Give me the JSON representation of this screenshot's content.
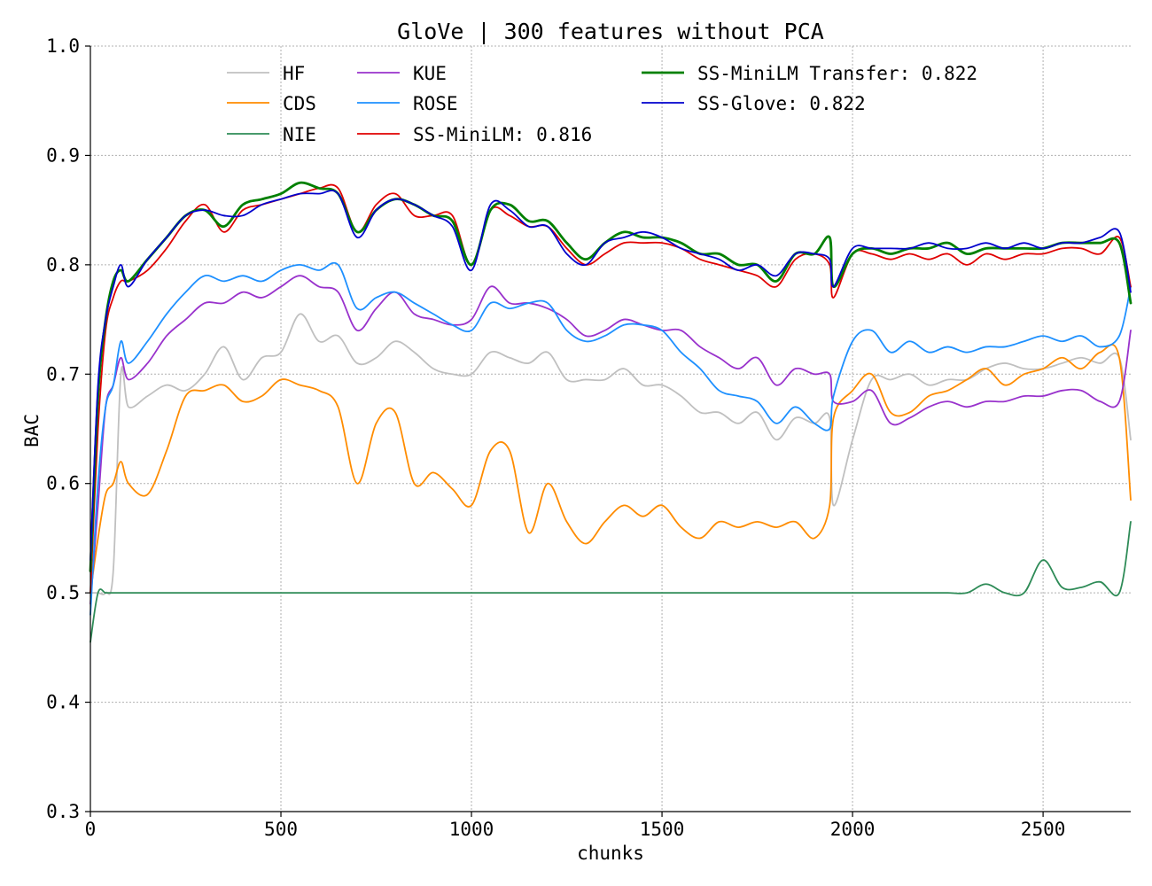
{
  "chart_data": {
    "type": "line",
    "title": "GloVe | 300 features without PCA",
    "xlabel": "chunks",
    "ylabel": "BAC",
    "xlim": [
      0,
      2730
    ],
    "ylim": [
      0.3,
      1.0
    ],
    "xticks": [
      0,
      500,
      1000,
      1500,
      2000,
      2500
    ],
    "yticks": [
      0.3,
      0.4,
      0.5,
      0.6,
      0.7,
      0.8,
      0.9,
      1.0
    ],
    "xtick_labels": [
      "0",
      "500",
      "1000",
      "1500",
      "2000",
      "2500"
    ],
    "ytick_labels": [
      "0.3",
      "0.4",
      "0.5",
      "0.6",
      "0.7",
      "0.8",
      "0.9",
      "1.0"
    ],
    "grid": true,
    "legend_position": "top",
    "legend_columns": [
      [
        "HF",
        "CDS",
        "NIE"
      ],
      [
        "KUE",
        "ROSE",
        "SS-MiniLM: 0.816"
      ],
      [
        "SS-MiniLM Transfer: 0.822",
        "SS-Glove: 0.822"
      ]
    ],
    "x": [
      0,
      20,
      40,
      60,
      80,
      100,
      150,
      200,
      250,
      300,
      350,
      400,
      450,
      500,
      550,
      600,
      650,
      700,
      750,
      800,
      850,
      900,
      950,
      1000,
      1050,
      1100,
      1150,
      1200,
      1250,
      1300,
      1350,
      1400,
      1450,
      1500,
      1550,
      1600,
      1650,
      1700,
      1750,
      1800,
      1850,
      1900,
      1940,
      1950,
      2000,
      2050,
      2100,
      2150,
      2200,
      2250,
      2300,
      2350,
      2400,
      2450,
      2500,
      2550,
      2600,
      2650,
      2700,
      2730
    ],
    "series": [
      {
        "name": "HF",
        "color": "#c0c0c0",
        "width": 1.8,
        "values": [
          0.5,
          0.5,
          0.5,
          0.52,
          0.7,
          0.67,
          0.68,
          0.69,
          0.685,
          0.7,
          0.725,
          0.695,
          0.715,
          0.72,
          0.755,
          0.73,
          0.735,
          0.71,
          0.715,
          0.73,
          0.72,
          0.705,
          0.7,
          0.7,
          0.72,
          0.715,
          0.71,
          0.72,
          0.695,
          0.695,
          0.695,
          0.705,
          0.69,
          0.69,
          0.68,
          0.665,
          0.665,
          0.655,
          0.665,
          0.64,
          0.66,
          0.655,
          0.66,
          0.58,
          0.64,
          0.695,
          0.695,
          0.7,
          0.69,
          0.695,
          0.695,
          0.705,
          0.71,
          0.705,
          0.705,
          0.71,
          0.715,
          0.71,
          0.715,
          0.64
        ]
      },
      {
        "name": "CDS",
        "color": "#ff8c00",
        "width": 1.8,
        "values": [
          0.5,
          0.55,
          0.59,
          0.6,
          0.62,
          0.6,
          0.59,
          0.63,
          0.68,
          0.685,
          0.69,
          0.675,
          0.68,
          0.695,
          0.69,
          0.685,
          0.67,
          0.6,
          0.655,
          0.665,
          0.6,
          0.61,
          0.595,
          0.58,
          0.63,
          0.63,
          0.555,
          0.6,
          0.565,
          0.545,
          0.565,
          0.58,
          0.57,
          0.58,
          0.56,
          0.55,
          0.565,
          0.56,
          0.565,
          0.56,
          0.565,
          0.55,
          0.58,
          0.66,
          0.685,
          0.7,
          0.665,
          0.665,
          0.68,
          0.685,
          0.695,
          0.705,
          0.69,
          0.7,
          0.705,
          0.715,
          0.705,
          0.72,
          0.715,
          0.585
        ]
      },
      {
        "name": "NIE",
        "color": "#2e8b57",
        "width": 1.8,
        "values": [
          0.455,
          0.5,
          0.5,
          0.5,
          0.5,
          0.5,
          0.5,
          0.5,
          0.5,
          0.5,
          0.5,
          0.5,
          0.5,
          0.5,
          0.5,
          0.5,
          0.5,
          0.5,
          0.5,
          0.5,
          0.5,
          0.5,
          0.5,
          0.5,
          0.5,
          0.5,
          0.5,
          0.5,
          0.5,
          0.5,
          0.5,
          0.5,
          0.5,
          0.5,
          0.5,
          0.5,
          0.5,
          0.5,
          0.5,
          0.5,
          0.5,
          0.5,
          0.5,
          0.5,
          0.5,
          0.5,
          0.5,
          0.5,
          0.5,
          0.5,
          0.5,
          0.508,
          0.5,
          0.5,
          0.53,
          0.505,
          0.505,
          0.51,
          0.5,
          0.565
        ]
      },
      {
        "name": "KUE",
        "color": "#9932cc",
        "width": 1.8,
        "values": [
          0.49,
          0.58,
          0.67,
          0.69,
          0.715,
          0.695,
          0.71,
          0.735,
          0.75,
          0.765,
          0.765,
          0.775,
          0.77,
          0.78,
          0.79,
          0.78,
          0.775,
          0.74,
          0.76,
          0.775,
          0.755,
          0.75,
          0.745,
          0.75,
          0.78,
          0.765,
          0.765,
          0.76,
          0.75,
          0.735,
          0.74,
          0.75,
          0.745,
          0.74,
          0.74,
          0.725,
          0.715,
          0.705,
          0.715,
          0.69,
          0.705,
          0.7,
          0.7,
          0.675,
          0.675,
          0.685,
          0.655,
          0.66,
          0.67,
          0.675,
          0.67,
          0.675,
          0.675,
          0.68,
          0.68,
          0.685,
          0.685,
          0.675,
          0.675,
          0.74
        ]
      },
      {
        "name": "ROSE",
        "color": "#1e90ff",
        "width": 1.8,
        "values": [
          0.48,
          0.6,
          0.67,
          0.69,
          0.73,
          0.71,
          0.73,
          0.755,
          0.775,
          0.79,
          0.785,
          0.79,
          0.785,
          0.795,
          0.8,
          0.795,
          0.8,
          0.76,
          0.77,
          0.775,
          0.765,
          0.755,
          0.745,
          0.74,
          0.765,
          0.76,
          0.765,
          0.765,
          0.74,
          0.73,
          0.735,
          0.745,
          0.745,
          0.74,
          0.72,
          0.705,
          0.685,
          0.68,
          0.675,
          0.655,
          0.67,
          0.655,
          0.65,
          0.68,
          0.73,
          0.74,
          0.72,
          0.73,
          0.72,
          0.725,
          0.72,
          0.725,
          0.725,
          0.73,
          0.735,
          0.73,
          0.735,
          0.725,
          0.735,
          0.78
        ]
      },
      {
        "name": "SS-MiniLM: 0.816",
        "color": "#e00000",
        "width": 1.8,
        "values": [
          0.5,
          0.65,
          0.74,
          0.77,
          0.785,
          0.785,
          0.795,
          0.815,
          0.84,
          0.855,
          0.83,
          0.85,
          0.855,
          0.86,
          0.865,
          0.87,
          0.87,
          0.83,
          0.855,
          0.865,
          0.845,
          0.845,
          0.845,
          0.8,
          0.85,
          0.845,
          0.835,
          0.835,
          0.815,
          0.8,
          0.81,
          0.82,
          0.82,
          0.82,
          0.815,
          0.805,
          0.8,
          0.795,
          0.79,
          0.78,
          0.805,
          0.81,
          0.8,
          0.77,
          0.81,
          0.81,
          0.805,
          0.81,
          0.805,
          0.81,
          0.8,
          0.81,
          0.805,
          0.81,
          0.81,
          0.815,
          0.815,
          0.81,
          0.825,
          0.78
        ]
      },
      {
        "name": "SS-MiniLM Transfer: 0.822",
        "color": "#008000",
        "width": 2.8,
        "values": [
          0.52,
          0.68,
          0.75,
          0.785,
          0.795,
          0.785,
          0.805,
          0.825,
          0.845,
          0.85,
          0.835,
          0.855,
          0.86,
          0.865,
          0.875,
          0.87,
          0.865,
          0.83,
          0.85,
          0.86,
          0.855,
          0.845,
          0.84,
          0.8,
          0.85,
          0.855,
          0.84,
          0.84,
          0.82,
          0.805,
          0.82,
          0.83,
          0.825,
          0.825,
          0.82,
          0.81,
          0.81,
          0.8,
          0.8,
          0.785,
          0.81,
          0.81,
          0.825,
          0.78,
          0.81,
          0.815,
          0.81,
          0.815,
          0.815,
          0.82,
          0.81,
          0.815,
          0.815,
          0.815,
          0.815,
          0.82,
          0.82,
          0.82,
          0.82,
          0.765
        ]
      },
      {
        "name": "SS-Glove: 0.822",
        "color": "#0000cd",
        "width": 1.8,
        "values": [
          0.53,
          0.69,
          0.75,
          0.78,
          0.8,
          0.78,
          0.805,
          0.825,
          0.845,
          0.85,
          0.845,
          0.845,
          0.855,
          0.86,
          0.865,
          0.865,
          0.865,
          0.825,
          0.85,
          0.86,
          0.855,
          0.845,
          0.835,
          0.795,
          0.855,
          0.85,
          0.835,
          0.835,
          0.81,
          0.8,
          0.82,
          0.825,
          0.83,
          0.825,
          0.815,
          0.81,
          0.805,
          0.795,
          0.8,
          0.79,
          0.81,
          0.81,
          0.805,
          0.78,
          0.815,
          0.815,
          0.815,
          0.815,
          0.82,
          0.815,
          0.815,
          0.82,
          0.815,
          0.82,
          0.815,
          0.82,
          0.82,
          0.825,
          0.83,
          0.775
        ]
      }
    ]
  }
}
